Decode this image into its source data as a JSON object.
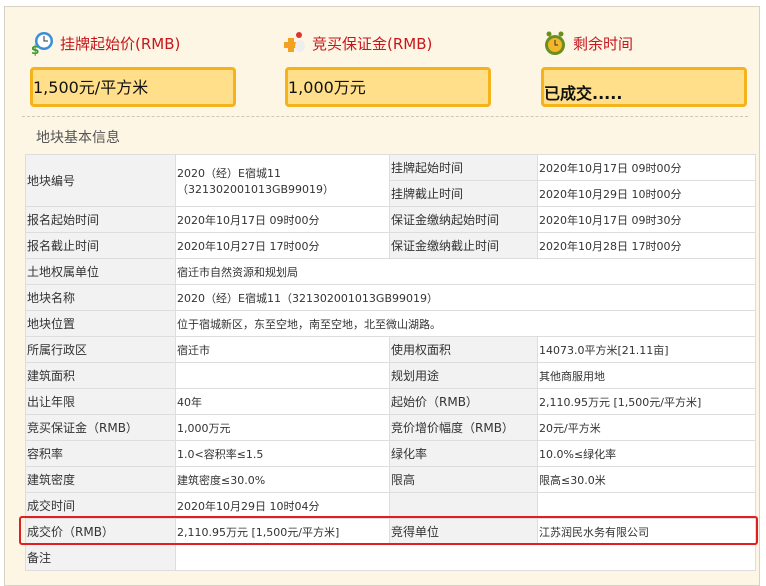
{
  "header": {
    "items": [
      {
        "icon": "clock-money-icon",
        "title": "挂牌起始价(RMB)",
        "value": "1,500元/平方米"
      },
      {
        "icon": "deposit-icon",
        "title": "竞买保证金(RMB)",
        "value": "1,000万元"
      },
      {
        "icon": "alarm-clock-icon",
        "title": "剩余时间",
        "value": "已成交....."
      }
    ],
    "colors": {
      "title": "#c8161d",
      "box_bg": "#ffdf8a",
      "box_border": "#f5b21a",
      "highlight": "#e02020"
    }
  },
  "section_title": "地块基本信息",
  "table": {
    "r0": {
      "l1": "地块编号",
      "v1a": "2020（经）E宿城11",
      "v1b": "（321302001013GB99019）",
      "l2": "挂牌起始时间",
      "v2": "2020年10月17日 09时00分",
      "l3": "挂牌截止时间",
      "v3": "2020年10月29日 10时00分"
    },
    "rows": [
      [
        "报名起始时间",
        "2020年10月17日 09时00分",
        "保证金缴纳起始时间",
        "2020年10月17日 09时30分"
      ],
      [
        "报名截止时间",
        "2020年10月27日 17时00分",
        "保证金缴纳截止时间",
        "2020年10月28日 17时00分"
      ],
      [
        "土地权属单位",
        "宿迁市自然资源和规划局"
      ],
      [
        "地块名称",
        "2020（经）E宿城11（321302001013GB99019）"
      ],
      [
        "地块位置",
        "位于宿城新区，东至空地，南至空地，北至微山湖路。"
      ],
      [
        "所属行政区",
        "宿迁市",
        "使用权面积",
        "14073.0平方米[21.11亩]"
      ],
      [
        "建筑面积",
        "",
        "规划用途",
        "其他商服用地"
      ],
      [
        "出让年限",
        "40年",
        "起始价（RMB）",
        "2,110.95万元 [1,500元/平方米]"
      ],
      [
        "竞买保证金（RMB）",
        "1,000万元",
        "竞价增价幅度（RMB）",
        "20元/平方米"
      ],
      [
        "容积率",
        "1.0<容积率≤1.5",
        "绿化率",
        "10.0%≤绿化率"
      ],
      [
        "建筑密度",
        "建筑密度≤30.0%",
        "限高",
        "限高≤30.0米"
      ],
      [
        "成交时间",
        "2020年10月29日 10时04分",
        "",
        ""
      ],
      [
        "成交价（RMB）",
        "2,110.95万元 [1,500元/平方米]",
        "竞得单位",
        "江苏润民水务有限公司"
      ],
      [
        "备注",
        ""
      ]
    ]
  }
}
